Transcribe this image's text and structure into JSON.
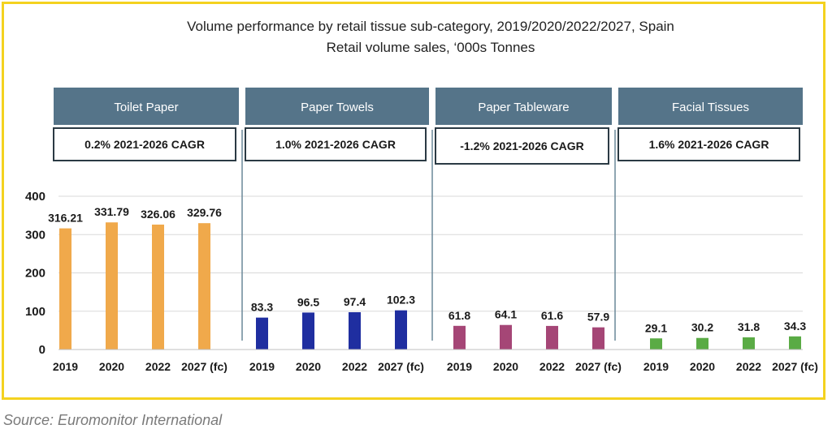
{
  "chart_data": {
    "type": "bar",
    "title": "Volume performance by retail tissue sub-category, 2019/2020/2022/2027, Spain",
    "subtitle": "Retail volume sales, ‘000s Tonnes",
    "ylim": [
      0,
      400
    ],
    "yticks": [
      "0",
      "100",
      "200",
      "300",
      "400"
    ],
    "categories": [
      "2019",
      "2020",
      "2022",
      "2027 (fc)"
    ],
    "grid": true,
    "colors": {
      "header_bg": "#557489",
      "header_text": "#ffffff",
      "axis_text": "#1a1a1a",
      "grid": "#d9d9d9",
      "divider": "#6a8899",
      "frame": "#f4d21f"
    },
    "series": [
      {
        "name": "Toilet Paper",
        "cagr": "0.2% 2021-2026 CAGR",
        "color": "#f0a94b",
        "values": [
          316.21,
          331.79,
          326.06,
          329.76
        ],
        "value_labels": [
          "316.21",
          "331.79",
          "326.06",
          "329.76"
        ]
      },
      {
        "name": "Paper Towels",
        "cagr": "1.0% 2021-2026 CAGR",
        "color": "#1f2ea0",
        "values": [
          83.3,
          96.5,
          97.4,
          102.3
        ],
        "value_labels": [
          "83.3",
          "96.5",
          "97.4",
          "102.3"
        ]
      },
      {
        "name": "Paper Tableware",
        "cagr": "-1.2% 2021-2026 CAGR",
        "color": "#a54676",
        "values": [
          61.8,
          64.1,
          61.6,
          57.9
        ],
        "value_labels": [
          "61.8",
          "64.1",
          "61.6",
          "57.9"
        ]
      },
      {
        "name": "Facial Tissues",
        "cagr": "1.6% 2021-2026 CAGR",
        "color": "#5aab45",
        "values": [
          29.1,
          30.2,
          31.8,
          34.3
        ],
        "value_labels": [
          "29.1",
          "30.2",
          "31.8",
          "34.3"
        ]
      }
    ]
  },
  "source": "Source: Euromonitor International"
}
